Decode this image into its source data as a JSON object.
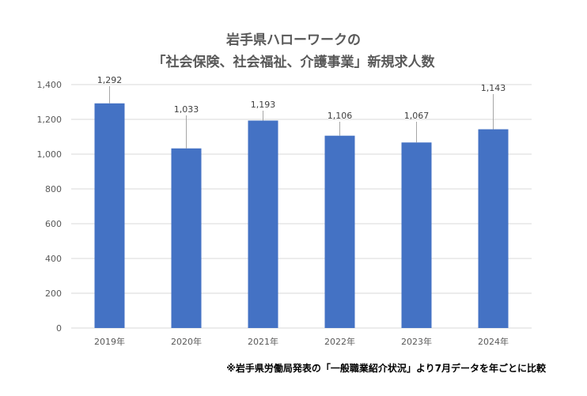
{
  "chart_data": {
    "type": "bar",
    "title_line1": "岩手県ハローワークの",
    "title_line2": "「社会保険、社会福祉、介護事業」新規求人数",
    "categories": [
      "2019年",
      "2020年",
      "2021年",
      "2022年",
      "2023年",
      "2024年"
    ],
    "values": [
      1292,
      1033,
      1193,
      1106,
      1067,
      1143
    ],
    "data_labels": [
      "1,292",
      "1,033",
      "1,193",
      "1,106",
      "1,067",
      "1,143"
    ],
    "ylim": [
      0,
      1400
    ],
    "yticks": [
      0,
      200,
      400,
      600,
      800,
      1000,
      1200,
      1400
    ],
    "ytick_labels": [
      "0",
      "200",
      "400",
      "600",
      "800",
      "1,000",
      "1,200",
      "1,400"
    ],
    "grid": true,
    "bar_color": "#4472C4",
    "xlabel": "",
    "ylabel": ""
  },
  "footnote": "※岩手県労働局発表の「一般職業紹介状況」より7月データを年ごとに比較"
}
